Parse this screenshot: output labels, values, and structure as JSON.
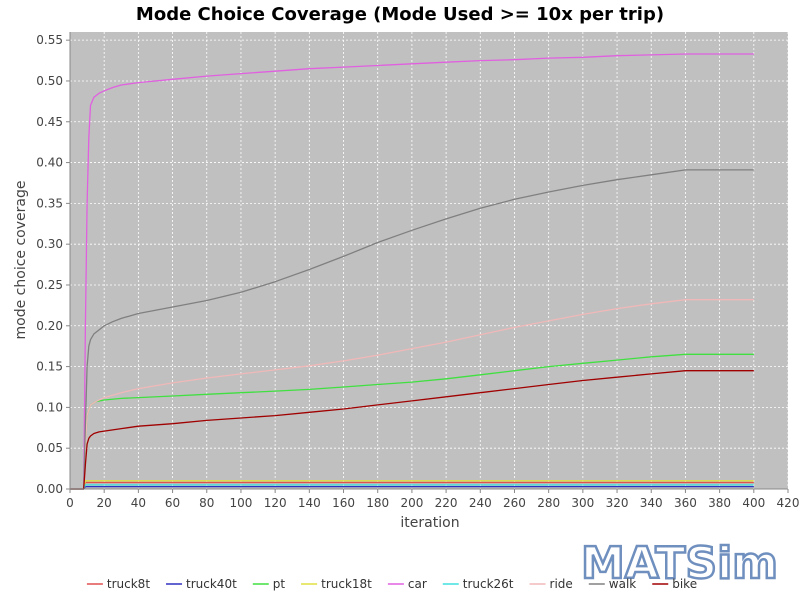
{
  "chart_data": {
    "type": "line",
    "title": "Mode Choice Coverage (Mode Used >= 10x per trip)",
    "xlabel": "iteration",
    "ylabel": "mode choice coverage",
    "xlim": [
      0,
      420
    ],
    "ylim": [
      0,
      0.56
    ],
    "xticks": [
      0,
      20,
      40,
      60,
      80,
      100,
      120,
      140,
      160,
      180,
      200,
      220,
      240,
      260,
      280,
      300,
      320,
      340,
      360,
      380,
      400,
      420
    ],
    "yticks": [
      0.0,
      0.05,
      0.1,
      0.15,
      0.2,
      0.25,
      0.3,
      0.35,
      0.4,
      0.45,
      0.5,
      0.55
    ],
    "ytick_labels": [
      "0.00",
      "0.05",
      "0.10",
      "0.15",
      "0.20",
      "0.25",
      "0.30",
      "0.35",
      "0.40",
      "0.45",
      "0.50",
      "0.55"
    ],
    "grid": true,
    "background": "#c0c0c0",
    "legend_position": "bottom",
    "series": [
      {
        "name": "truck8t",
        "color": "#e05050",
        "x": [
          0,
          8,
          9,
          10,
          400
        ],
        "y": [
          0,
          0,
          0.008,
          0.008,
          0.008
        ]
      },
      {
        "name": "truck40t",
        "color": "#3030c0",
        "x": [
          0,
          8,
          9,
          10,
          400
        ],
        "y": [
          0,
          0,
          0.003,
          0.003,
          0.003
        ]
      },
      {
        "name": "pt",
        "color": "#40e040",
        "x": [
          0,
          8,
          9,
          10,
          12,
          15,
          20,
          30,
          40,
          60,
          80,
          100,
          120,
          140,
          160,
          180,
          200,
          220,
          240,
          260,
          280,
          300,
          320,
          340,
          360,
          380,
          400
        ],
        "y": [
          0,
          0,
          0.05,
          0.09,
          0.103,
          0.107,
          0.109,
          0.111,
          0.112,
          0.114,
          0.116,
          0.118,
          0.12,
          0.122,
          0.125,
          0.128,
          0.131,
          0.135,
          0.14,
          0.145,
          0.15,
          0.154,
          0.158,
          0.162,
          0.165,
          0.165,
          0.165
        ]
      },
      {
        "name": "truck18t",
        "color": "#e0e040",
        "x": [
          0,
          8,
          9,
          10,
          400
        ],
        "y": [
          0,
          0,
          0.01,
          0.01,
          0.01
        ]
      },
      {
        "name": "car",
        "color": "#e060e0",
        "x": [
          0,
          8,
          9,
          10,
          11,
          12,
          14,
          17,
          20,
          25,
          30,
          40,
          60,
          80,
          100,
          120,
          140,
          160,
          180,
          200,
          220,
          240,
          260,
          280,
          300,
          320,
          340,
          360,
          380,
          400
        ],
        "y": [
          0,
          0,
          0.2,
          0.35,
          0.43,
          0.47,
          0.48,
          0.485,
          0.488,
          0.492,
          0.495,
          0.498,
          0.502,
          0.506,
          0.509,
          0.512,
          0.515,
          0.517,
          0.519,
          0.521,
          0.523,
          0.525,
          0.526,
          0.528,
          0.529,
          0.531,
          0.532,
          0.533,
          0.533,
          0.533
        ]
      },
      {
        "name": "truck26t",
        "color": "#40e0e0",
        "x": [
          0,
          8,
          9,
          10,
          400
        ],
        "y": [
          0,
          0,
          0.005,
          0.005,
          0.005
        ]
      },
      {
        "name": "ride",
        "color": "#f0b8b8",
        "x": [
          0,
          8,
          9,
          10,
          12,
          15,
          20,
          30,
          40,
          60,
          80,
          100,
          120,
          140,
          160,
          180,
          200,
          220,
          240,
          260,
          280,
          300,
          320,
          340,
          360,
          380,
          400
        ],
        "y": [
          0,
          0,
          0.05,
          0.09,
          0.103,
          0.107,
          0.112,
          0.118,
          0.123,
          0.13,
          0.136,
          0.141,
          0.146,
          0.151,
          0.157,
          0.164,
          0.172,
          0.18,
          0.189,
          0.198,
          0.206,
          0.214,
          0.221,
          0.227,
          0.232,
          0.232,
          0.232
        ]
      },
      {
        "name": "walk",
        "color": "#808080",
        "x": [
          0,
          8,
          9,
          10,
          11,
          12,
          14,
          17,
          20,
          25,
          30,
          40,
          60,
          80,
          100,
          120,
          140,
          160,
          180,
          200,
          220,
          240,
          260,
          280,
          300,
          320,
          340,
          360,
          380,
          400
        ],
        "y": [
          0,
          0,
          0.08,
          0.15,
          0.175,
          0.183,
          0.19,
          0.195,
          0.2,
          0.205,
          0.209,
          0.215,
          0.223,
          0.231,
          0.241,
          0.254,
          0.269,
          0.285,
          0.302,
          0.317,
          0.331,
          0.344,
          0.355,
          0.364,
          0.372,
          0.379,
          0.385,
          0.391,
          0.391,
          0.391
        ]
      },
      {
        "name": "bike",
        "color": "#a00000",
        "x": [
          0,
          8,
          9,
          10,
          11,
          12,
          14,
          17,
          20,
          30,
          40,
          60,
          80,
          100,
          120,
          140,
          160,
          180,
          200,
          220,
          240,
          260,
          280,
          300,
          320,
          340,
          360,
          380,
          400
        ],
        "y": [
          0,
          0,
          0.03,
          0.055,
          0.062,
          0.065,
          0.068,
          0.07,
          0.071,
          0.074,
          0.077,
          0.08,
          0.084,
          0.087,
          0.09,
          0.094,
          0.098,
          0.103,
          0.108,
          0.113,
          0.118,
          0.123,
          0.128,
          0.133,
          0.137,
          0.141,
          0.145,
          0.145,
          0.145
        ]
      }
    ]
  },
  "logo": {
    "text": "MATSim",
    "color": "#6f8fbf"
  }
}
